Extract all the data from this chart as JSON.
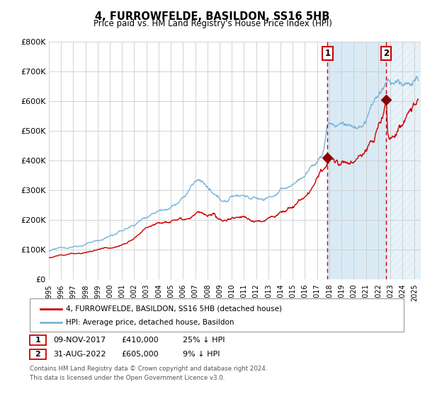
{
  "title": "4, FURROWFELDE, BASILDON, SS16 5HB",
  "subtitle": "Price paid vs. HM Land Registry's House Price Index (HPI)",
  "ylim": [
    0,
    800000
  ],
  "yticks": [
    0,
    100000,
    200000,
    300000,
    400000,
    500000,
    600000,
    700000,
    800000
  ],
  "ytick_labels": [
    "£0",
    "£100K",
    "£200K",
    "£300K",
    "£400K",
    "£500K",
    "£600K",
    "£700K",
    "£800K"
  ],
  "xlim_start": 1995.0,
  "xlim_end": 2025.5,
  "xtick_years": [
    1995,
    1996,
    1997,
    1998,
    1999,
    2000,
    2001,
    2002,
    2003,
    2004,
    2005,
    2006,
    2007,
    2008,
    2009,
    2010,
    2011,
    2012,
    2013,
    2014,
    2015,
    2016,
    2017,
    2018,
    2019,
    2020,
    2021,
    2022,
    2023,
    2024,
    2025
  ],
  "hpi_color": "#7ab4d8",
  "price_color": "#cc0000",
  "marker_color": "#8b0000",
  "vline_color": "#cc0000",
  "shade_color": "#daeaf5",
  "sale1_x": 2017.86,
  "sale1_y": 410000,
  "sale1_label": "1",
  "sale2_x": 2022.66,
  "sale2_y": 605000,
  "sale2_label": "2",
  "legend_label1": "4, FURROWFELDE, BASILDON, SS16 5HB (detached house)",
  "legend_label2": "HPI: Average price, detached house, Basildon",
  "table_row1": [
    "1",
    "09-NOV-2017",
    "£410,000",
    "25% ↓ HPI"
  ],
  "table_row2": [
    "2",
    "31-AUG-2022",
    "£605,000",
    "9% ↓ HPI"
  ],
  "footer": "Contains HM Land Registry data © Crown copyright and database right 2024.\nThis data is licensed under the Open Government Licence v3.0.",
  "bg_color": "#ffffff",
  "grid_color": "#cccccc"
}
